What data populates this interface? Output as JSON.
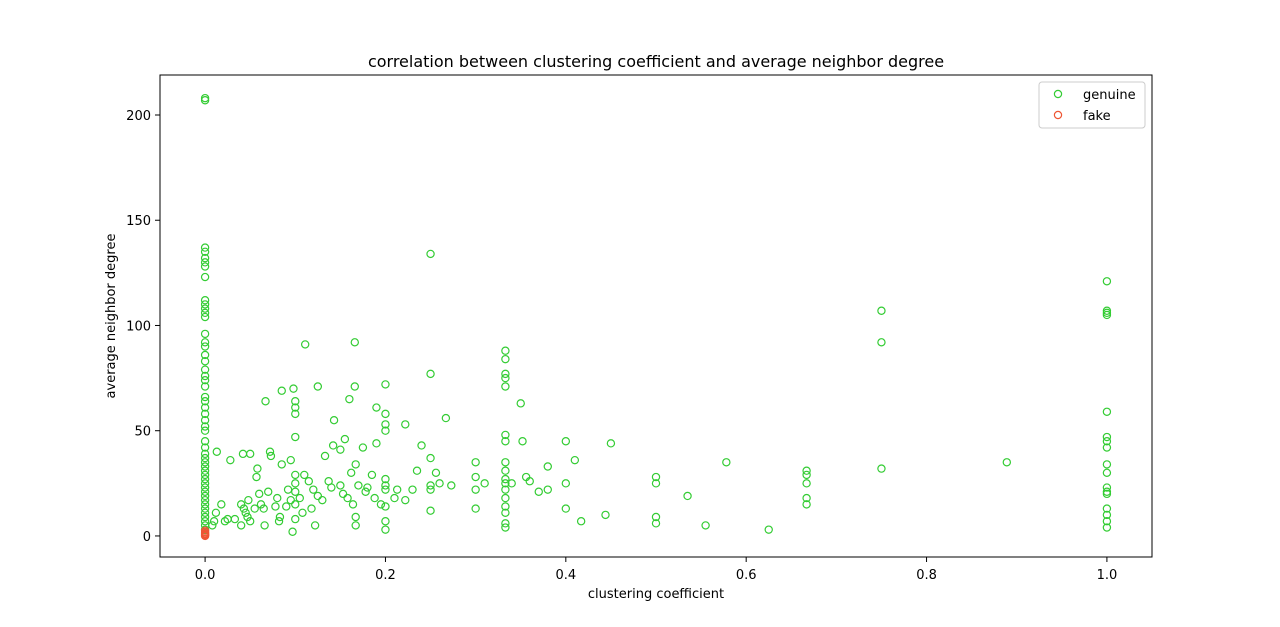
{
  "chart_data": {
    "type": "scatter",
    "title": "correlation between clustering coefficient and average neighbor degree",
    "xlabel": "clustering coefficient",
    "ylabel": "average neighbor degree",
    "xlim": [
      -0.05,
      1.05
    ],
    "ylim": [
      -10,
      219
    ],
    "xticks": [
      0.0,
      0.2,
      0.4,
      0.6,
      0.8,
      1.0
    ],
    "xtick_labels": [
      "0.0",
      "0.2",
      "0.4",
      "0.6",
      "0.8",
      "1.0"
    ],
    "yticks": [
      0,
      50,
      100,
      150,
      200
    ],
    "ytick_labels": [
      "0",
      "50",
      "100",
      "150",
      "200"
    ],
    "grid": false,
    "legend_position": "top-right",
    "marker": "hollow-circle",
    "series": [
      {
        "name": "genuine",
        "color": "#33cc33",
        "points": [
          [
            0,
            208
          ],
          [
            0,
            207
          ],
          [
            0,
            137
          ],
          [
            0,
            135
          ],
          [
            0,
            132
          ],
          [
            0,
            130
          ],
          [
            0,
            128
          ],
          [
            0,
            123
          ],
          [
            0,
            112
          ],
          [
            0,
            110
          ],
          [
            0,
            108
          ],
          [
            0,
            106
          ],
          [
            0,
            104
          ],
          [
            0,
            96
          ],
          [
            0,
            92
          ],
          [
            0,
            90
          ],
          [
            0,
            86
          ],
          [
            0,
            83
          ],
          [
            0,
            79
          ],
          [
            0,
            76
          ],
          [
            0,
            74
          ],
          [
            0,
            71
          ],
          [
            0,
            66
          ],
          [
            0,
            64
          ],
          [
            0,
            61
          ],
          [
            0,
            58
          ],
          [
            0,
            55
          ],
          [
            0,
            52
          ],
          [
            0,
            50
          ],
          [
            0,
            45
          ],
          [
            0,
            42
          ],
          [
            0,
            39
          ],
          [
            0,
            37
          ],
          [
            0,
            35
          ],
          [
            0,
            33
          ],
          [
            0,
            31
          ],
          [
            0,
            29
          ],
          [
            0,
            27
          ],
          [
            0,
            25
          ],
          [
            0,
            23
          ],
          [
            0,
            21
          ],
          [
            0,
            19
          ],
          [
            0,
            17
          ],
          [
            0,
            15
          ],
          [
            0,
            13
          ],
          [
            0,
            11
          ],
          [
            0,
            9
          ],
          [
            0,
            7
          ],
          [
            0,
            5
          ],
          [
            0,
            3
          ],
          [
            0.008,
            5
          ],
          [
            0.01,
            7
          ],
          [
            0.012,
            11
          ],
          [
            0.013,
            40
          ],
          [
            0.018,
            15
          ],
          [
            0.022,
            7
          ],
          [
            0.025,
            8
          ],
          [
            0.028,
            36
          ],
          [
            0.033,
            8
          ],
          [
            0.04,
            5
          ],
          [
            0.04,
            15
          ],
          [
            0.042,
            39
          ],
          [
            0.043,
            13
          ],
          [
            0.045,
            11
          ],
          [
            0.047,
            9
          ],
          [
            0.048,
            17
          ],
          [
            0.05,
            7
          ],
          [
            0.05,
            39
          ],
          [
            0.055,
            13
          ],
          [
            0.057,
            28
          ],
          [
            0.058,
            32
          ],
          [
            0.06,
            20
          ],
          [
            0.062,
            15
          ],
          [
            0.065,
            13
          ],
          [
            0.066,
            5
          ],
          [
            0.067,
            64
          ],
          [
            0.07,
            21
          ],
          [
            0.072,
            40
          ],
          [
            0.073,
            38
          ],
          [
            0.078,
            14
          ],
          [
            0.08,
            18
          ],
          [
            0.082,
            7
          ],
          [
            0.083,
            9
          ],
          [
            0.085,
            34
          ],
          [
            0.085,
            69
          ],
          [
            0.09,
            14
          ],
          [
            0.092,
            22
          ],
          [
            0.095,
            17
          ],
          [
            0.095,
            36
          ],
          [
            0.097,
            2
          ],
          [
            0.098,
            70
          ],
          [
            0.1,
            64
          ],
          [
            0.1,
            61
          ],
          [
            0.1,
            58
          ],
          [
            0.1,
            47
          ],
          [
            0.1,
            29
          ],
          [
            0.1,
            25
          ],
          [
            0.1,
            21
          ],
          [
            0.1,
            15
          ],
          [
            0.1,
            8
          ],
          [
            0.105,
            18
          ],
          [
            0.108,
            11
          ],
          [
            0.11,
            29
          ],
          [
            0.111,
            91
          ],
          [
            0.115,
            26
          ],
          [
            0.118,
            13
          ],
          [
            0.12,
            22
          ],
          [
            0.122,
            5
          ],
          [
            0.125,
            19
          ],
          [
            0.125,
            71
          ],
          [
            0.13,
            17
          ],
          [
            0.133,
            38
          ],
          [
            0.137,
            26
          ],
          [
            0.14,
            23
          ],
          [
            0.142,
            43
          ],
          [
            0.143,
            55
          ],
          [
            0.15,
            24
          ],
          [
            0.15,
            41
          ],
          [
            0.153,
            20
          ],
          [
            0.155,
            46
          ],
          [
            0.158,
            18
          ],
          [
            0.16,
            65
          ],
          [
            0.162,
            30
          ],
          [
            0.164,
            15
          ],
          [
            0.166,
            92
          ],
          [
            0.166,
            71
          ],
          [
            0.167,
            5
          ],
          [
            0.167,
            9
          ],
          [
            0.167,
            34
          ],
          [
            0.17,
            24
          ],
          [
            0.175,
            42
          ],
          [
            0.178,
            21
          ],
          [
            0.18,
            23
          ],
          [
            0.185,
            29
          ],
          [
            0.188,
            18
          ],
          [
            0.19,
            44
          ],
          [
            0.19,
            61
          ],
          [
            0.195,
            15
          ],
          [
            0.2,
            72
          ],
          [
            0.2,
            58
          ],
          [
            0.2,
            53
          ],
          [
            0.2,
            50
          ],
          [
            0.2,
            27
          ],
          [
            0.2,
            24
          ],
          [
            0.2,
            22
          ],
          [
            0.2,
            14
          ],
          [
            0.2,
            7
          ],
          [
            0.2,
            3
          ],
          [
            0.21,
            18
          ],
          [
            0.213,
            22
          ],
          [
            0.222,
            53
          ],
          [
            0.222,
            17
          ],
          [
            0.23,
            22
          ],
          [
            0.235,
            31
          ],
          [
            0.24,
            43
          ],
          [
            0.25,
            134
          ],
          [
            0.25,
            77
          ],
          [
            0.25,
            37
          ],
          [
            0.25,
            24
          ],
          [
            0.25,
            22
          ],
          [
            0.25,
            12
          ],
          [
            0.256,
            30
          ],
          [
            0.26,
            25
          ],
          [
            0.267,
            56
          ],
          [
            0.273,
            24
          ],
          [
            0.3,
            35
          ],
          [
            0.3,
            28
          ],
          [
            0.3,
            22
          ],
          [
            0.3,
            13
          ],
          [
            0.31,
            25
          ],
          [
            0.333,
            88
          ],
          [
            0.333,
            84
          ],
          [
            0.333,
            77
          ],
          [
            0.333,
            75
          ],
          [
            0.333,
            71
          ],
          [
            0.333,
            48
          ],
          [
            0.333,
            45
          ],
          [
            0.333,
            35
          ],
          [
            0.333,
            31
          ],
          [
            0.333,
            27
          ],
          [
            0.333,
            25
          ],
          [
            0.333,
            22
          ],
          [
            0.333,
            18
          ],
          [
            0.333,
            14
          ],
          [
            0.333,
            11
          ],
          [
            0.333,
            6
          ],
          [
            0.333,
            4
          ],
          [
            0.34,
            25
          ],
          [
            0.35,
            63
          ],
          [
            0.352,
            45
          ],
          [
            0.356,
            28
          ],
          [
            0.36,
            26
          ],
          [
            0.37,
            21
          ],
          [
            0.38,
            33
          ],
          [
            0.38,
            22
          ],
          [
            0.4,
            45
          ],
          [
            0.4,
            25
          ],
          [
            0.4,
            13
          ],
          [
            0.41,
            36
          ],
          [
            0.417,
            7
          ],
          [
            0.444,
            10
          ],
          [
            0.45,
            44
          ],
          [
            0.5,
            28
          ],
          [
            0.5,
            25
          ],
          [
            0.5,
            9
          ],
          [
            0.5,
            6
          ],
          [
            0.535,
            19
          ],
          [
            0.555,
            5
          ],
          [
            0.578,
            35
          ],
          [
            0.625,
            3
          ],
          [
            0.667,
            31
          ],
          [
            0.667,
            29
          ],
          [
            0.667,
            25
          ],
          [
            0.667,
            18
          ],
          [
            0.667,
            15
          ],
          [
            0.75,
            107
          ],
          [
            0.75,
            92
          ],
          [
            0.75,
            32
          ],
          [
            0.889,
            35
          ],
          [
            1.0,
            121
          ],
          [
            1.0,
            107
          ],
          [
            1.0,
            106
          ],
          [
            1.0,
            105
          ],
          [
            1.0,
            59
          ],
          [
            1.0,
            47
          ],
          [
            1.0,
            45
          ],
          [
            1.0,
            42
          ],
          [
            1.0,
            34
          ],
          [
            1.0,
            30
          ],
          [
            1.0,
            23
          ],
          [
            1.0,
            21
          ],
          [
            1.0,
            20
          ],
          [
            1.0,
            13
          ],
          [
            1.0,
            10
          ],
          [
            1.0,
            7
          ],
          [
            1.0,
            4
          ]
        ]
      },
      {
        "name": "fake",
        "color": "#ee5533",
        "points": [
          [
            0,
            2.5
          ],
          [
            0,
            1.8
          ],
          [
            0,
            1.2
          ],
          [
            0,
            0.8
          ],
          [
            0,
            0.4
          ],
          [
            0,
            0
          ]
        ]
      }
    ]
  }
}
